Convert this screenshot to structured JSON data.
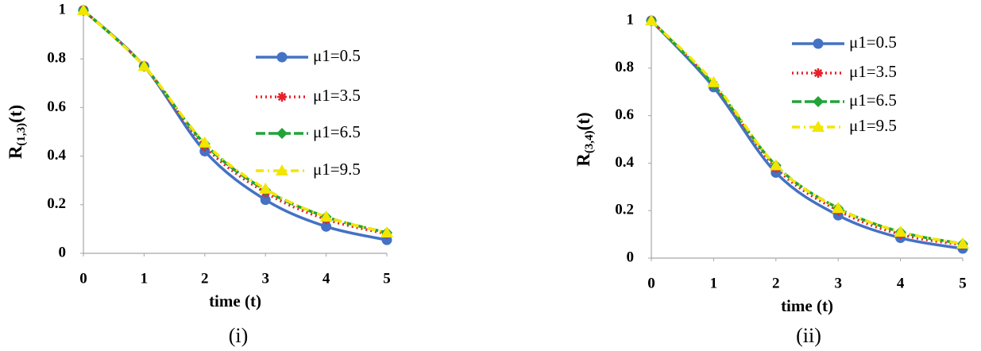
{
  "chart_data": [
    {
      "type": "line",
      "caption": "(i)",
      "xlabel": "time (t)",
      "ylabel": [
        "R",
        "(1,3)",
        "(t)"
      ],
      "x": [
        0,
        1,
        2,
        3,
        4,
        5
      ],
      "xlim": [
        0,
        5
      ],
      "xticks": [
        0,
        1,
        2,
        3,
        4,
        5
      ],
      "ylim": [
        0,
        1
      ],
      "yticks": [
        0,
        0.2,
        0.4,
        0.6,
        0.8,
        1
      ],
      "series": [
        {
          "name": "μ1=0.5",
          "color": "#4472c4",
          "marker": "circle",
          "linestyle": "solid",
          "values": [
            1,
            0.77,
            0.42,
            0.22,
            0.11,
            0.055
          ]
        },
        {
          "name": "μ1=3.5",
          "color": "#e8202a",
          "marker": "star",
          "linestyle": "dotted",
          "values": [
            1,
            0.77,
            0.44,
            0.25,
            0.14,
            0.08
          ]
        },
        {
          "name": "μ1=6.5",
          "color": "#22a33a",
          "marker": "diamond",
          "linestyle": "dashed",
          "values": [
            1,
            0.77,
            0.45,
            0.26,
            0.15,
            0.085
          ]
        },
        {
          "name": "μ1=9.5",
          "color": "#f2e600",
          "marker": "triangle",
          "linestyle": "dashdot",
          "values": [
            1,
            0.77,
            0.455,
            0.265,
            0.15,
            0.085
          ]
        }
      ]
    },
    {
      "type": "line",
      "caption": "(ii)",
      "xlabel": "time (t)",
      "ylabel": [
        "R",
        "(3,4)",
        "(t)"
      ],
      "x": [
        0,
        1,
        2,
        3,
        4,
        5
      ],
      "xlim": [
        0,
        5
      ],
      "xticks": [
        0,
        1,
        2,
        3,
        4,
        5
      ],
      "ylim": [
        0,
        1
      ],
      "yticks": [
        0,
        0.2,
        0.4,
        0.6,
        0.8,
        1
      ],
      "series": [
        {
          "name": "μ1=0.5",
          "color": "#4472c4",
          "marker": "circle",
          "linestyle": "solid",
          "values": [
            1,
            0.72,
            0.36,
            0.18,
            0.085,
            0.04
          ]
        },
        {
          "name": "μ1=3.5",
          "color": "#e8202a",
          "marker": "star",
          "linestyle": "dotted",
          "values": [
            1,
            0.73,
            0.38,
            0.2,
            0.1,
            0.055
          ]
        },
        {
          "name": "μ1=6.5",
          "color": "#22a33a",
          "marker": "diamond",
          "linestyle": "dashed",
          "values": [
            1,
            0.73,
            0.39,
            0.21,
            0.11,
            0.06
          ]
        },
        {
          "name": "μ1=9.5",
          "color": "#f2e600",
          "marker": "triangle",
          "linestyle": "dashdot",
          "values": [
            1,
            0.74,
            0.39,
            0.21,
            0.11,
            0.06
          ]
        }
      ]
    }
  ]
}
